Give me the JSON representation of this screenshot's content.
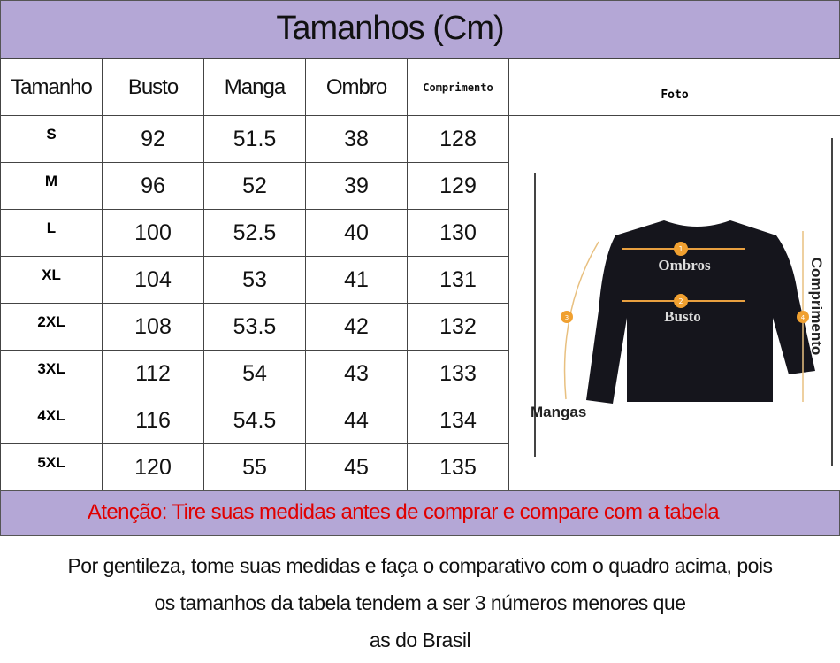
{
  "title": "Tamanhos (Cm)",
  "columns": [
    "Tamanho",
    "Busto",
    "Manga",
    "Ombro",
    "Comprimento",
    "Foto"
  ],
  "rows": [
    {
      "size": "S",
      "values": [
        "92",
        "51.5",
        "38",
        "128"
      ]
    },
    {
      "size": "M",
      "values": [
        "96",
        "52",
        "39",
        "129"
      ]
    },
    {
      "size": "L",
      "values": [
        "100",
        "52.5",
        "40",
        "130"
      ]
    },
    {
      "size": "XL",
      "values": [
        "104",
        "53",
        "41",
        "131"
      ]
    },
    {
      "size": "2XL",
      "values": [
        "108",
        "53.5",
        "42",
        "132"
      ]
    },
    {
      "size": "3XL",
      "values": [
        "112",
        "54",
        "43",
        "133"
      ]
    },
    {
      "size": "4XL",
      "values": [
        "116",
        "54.5",
        "44",
        "134"
      ]
    },
    {
      "size": "5XL",
      "values": [
        "120",
        "55",
        "45",
        "135"
      ]
    }
  ],
  "photo": {
    "labels": {
      "ombros": "Ombros",
      "busto": "Busto",
      "mangas": "Mangas",
      "comprimento": "Comprimento"
    },
    "markers": [
      "1",
      "2",
      "3",
      "4"
    ]
  },
  "attention": "Atenção: Tire suas medidas antes de comprar e compare com a tabela",
  "note": [
    "Por gentileza, tome suas medidas e faça o comparativo com o quadro acima, pois",
    "os tamanhos da tabela tendem a ser 3 números menores que",
    "as do Brasil"
  ],
  "colors": {
    "band": "#b4a7d6",
    "attention_text": "#e00000",
    "marker": "#f0a030",
    "garment": "#15151c"
  }
}
